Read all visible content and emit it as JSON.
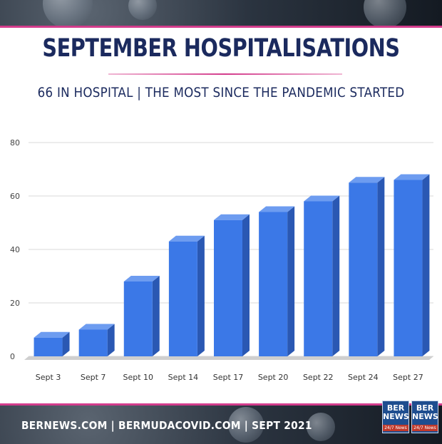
{
  "header": {
    "title": "SEPTEMBER HOSPITALISATIONS",
    "subtitle": "66 IN HOSPITAL | THE MOST SINCE THE PANDEMIC STARTED"
  },
  "footer": {
    "text": "BERNEWS.COM | BERMUDACOVID.COM | SEPT 2021",
    "logo_top": "BER",
    "logo_mid": "NEWS",
    "logo_bottom": "24/7 News"
  },
  "colors": {
    "bar_front": "#3b78e7",
    "bar_side": "#2a58b3",
    "bar_top": "#6d9cf0",
    "accent": "#d33c8c",
    "title": "#1b2a5e"
  },
  "chart_data": {
    "type": "bar",
    "categories": [
      "Sept 3",
      "Sept 7",
      "Sept 10",
      "Sept 14",
      "Sept 17",
      "Sept 20",
      "Sept 22",
      "Sept 24",
      "Sept 27"
    ],
    "values": [
      7,
      10,
      28,
      43,
      51,
      54,
      58,
      65,
      66
    ],
    "ylim": [
      0,
      80
    ],
    "yticks": [
      0,
      20,
      40,
      60,
      80
    ],
    "grid": true,
    "title": "SEPTEMBER HOSPITALISATIONS",
    "subtitle": "66 IN HOSPITAL | THE MOST SINCE THE PANDEMIC STARTED",
    "xlabel": "",
    "ylabel": ""
  }
}
